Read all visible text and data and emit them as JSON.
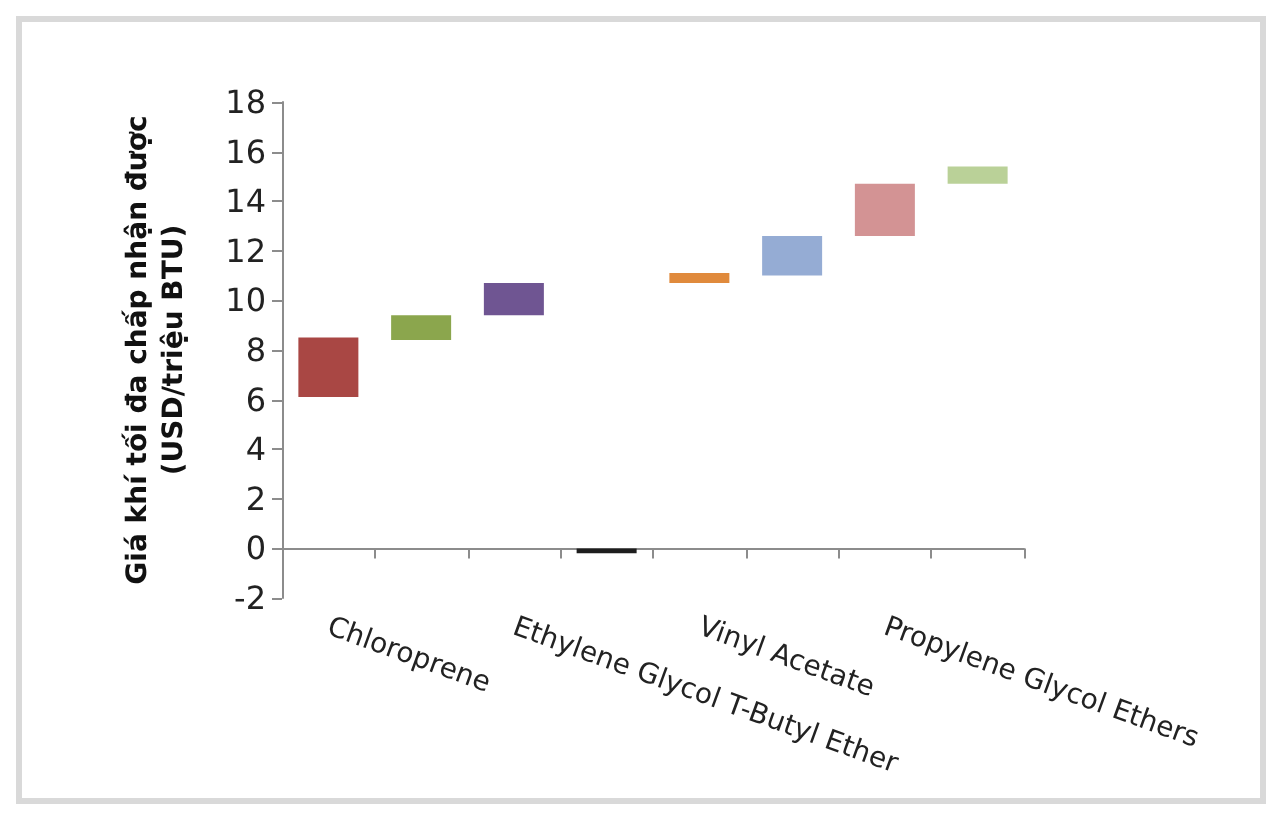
{
  "chart_data": {
    "type": "bar",
    "ylabel": "Giá khí tối đa chấp nhận được\n(USD/triệu BTU)",
    "categories": [
      "Chloroprene",
      null,
      "Ethylene Glycol T-Butyl Ether",
      null,
      "Vinyl Acetate",
      null,
      "Propylene Glycol Ethers",
      null
    ],
    "base": [
      6.1,
      8.4,
      9.4,
      -0.2,
      10.7,
      11.0,
      12.6,
      14.7
    ],
    "values": [
      2.4,
      1.0,
      1.3,
      0.2,
      0.4,
      1.6,
      2.1,
      0.7
    ],
    "colors": [
      "#a94744",
      "#8ba64d",
      "#6f5592",
      "#1e1e1e",
      "#e08a3c",
      "#95acd4",
      "#d39394",
      "#bad198"
    ],
    "ylim": [
      -2,
      18
    ],
    "yticks": [
      -2,
      0,
      2,
      4,
      6,
      8,
      10,
      12,
      14,
      16,
      18
    ],
    "grid": false
  }
}
